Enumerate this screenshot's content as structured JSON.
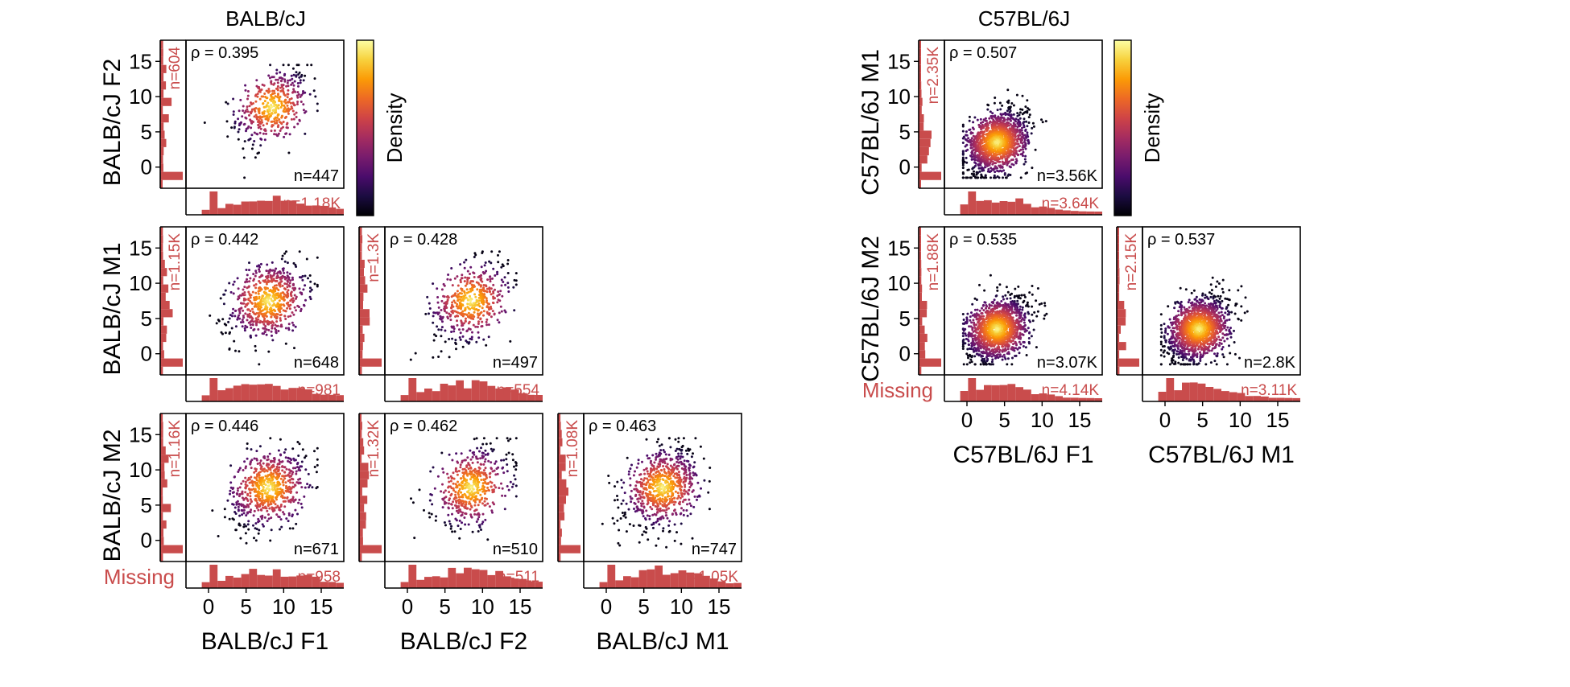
{
  "colors": {
    "hist": "#c94c4c",
    "missing_text": "#c94c4c",
    "axis": "#000000",
    "colormap": [
      "#000004",
      "#1b0c41",
      "#4a0c6b",
      "#781c6d",
      "#a52c60",
      "#cf4446",
      "#ed6925",
      "#fb9b06",
      "#f7d13d",
      "#fcffa4"
    ]
  },
  "colorbar_label": "Density",
  "missing_label": "Missing",
  "chart_data": [
    {
      "type": "scatter",
      "group": "BALB/cJ",
      "title": "BALB/cJ",
      "xlim": [
        -3,
        18
      ],
      "ylim": [
        -3,
        18
      ],
      "ticks": [
        0,
        5,
        10,
        15
      ],
      "panels": [
        {
          "row": 0,
          "col": 0,
          "xlabel": "",
          "ylabel": "BALB/cJ F2",
          "rho_label": "ρ = 0.395",
          "n_label": "n=447",
          "top_hist_label": "n=1.18K",
          "left_hist_label": "n=604",
          "center": [
            8.5,
            8.5
          ],
          "spread": 2.4,
          "points": 447
        },
        {
          "row": 1,
          "col": 0,
          "xlabel": "",
          "ylabel": "BALB/cJ M1",
          "rho_label": "ρ = 0.442",
          "n_label": "n=648",
          "top_hist_label": "n=981",
          "left_hist_label": "n=1.15K",
          "center": [
            8.0,
            7.5
          ],
          "spread": 2.5,
          "points": 648
        },
        {
          "row": 1,
          "col": 1,
          "xlabel": "",
          "ylabel": "",
          "rho_label": "ρ = 0.428",
          "n_label": "n=497",
          "top_hist_label": "n=554",
          "left_hist_label": "n=1.3K",
          "center": [
            8.5,
            7.5
          ],
          "spread": 2.5,
          "points": 497
        },
        {
          "row": 2,
          "col": 0,
          "xlabel": "BALB/cJ F1",
          "ylabel": "BALB/cJ M2",
          "rho_label": "ρ = 0.446",
          "n_label": "n=671",
          "top_hist_label": "n=958",
          "left_hist_label": "n=1.16K",
          "center": [
            8.0,
            7.5
          ],
          "spread": 2.5,
          "points": 671
        },
        {
          "row": 2,
          "col": 1,
          "xlabel": "BALB/cJ F2",
          "ylabel": "",
          "rho_label": "ρ = 0.462",
          "n_label": "n=510",
          "top_hist_label": "n=511",
          "left_hist_label": "n=1.32K",
          "center": [
            8.5,
            7.5
          ],
          "spread": 2.5,
          "points": 510
        },
        {
          "row": 2,
          "col": 2,
          "xlabel": "BALB/cJ M1",
          "ylabel": "",
          "rho_label": "ρ = 0.463",
          "n_label": "n=747",
          "top_hist_label": "n=1.05K",
          "left_hist_label": "n=1.08K",
          "center": [
            7.5,
            7.5
          ],
          "spread": 2.4,
          "points": 747
        }
      ]
    },
    {
      "type": "scatter",
      "group": "C57BL/6J",
      "title": "C57BL/6J",
      "xlim": [
        -3,
        18
      ],
      "ylim": [
        -3,
        18
      ],
      "ticks": [
        0,
        5,
        10,
        15
      ],
      "panels": [
        {
          "row": 0,
          "col": 0,
          "xlabel": "",
          "ylabel": "C57BL/6J M1",
          "rho_label": "ρ = 0.507",
          "n_label": "n=3.56K",
          "top_hist_label": "n=3.64K",
          "left_hist_label": "n=2.35K",
          "center": [
            4.0,
            3.5
          ],
          "spread": 2.0,
          "points": 3560
        },
        {
          "row": 1,
          "col": 0,
          "xlabel": "C57BL/6J F1",
          "ylabel": "C57BL/6J M2",
          "rho_label": "ρ = 0.535",
          "n_label": "n=3.07K",
          "top_hist_label": "n=4.14K",
          "left_hist_label": "n=1.88K",
          "center": [
            4.0,
            3.5
          ],
          "spread": 2.0,
          "points": 3070
        },
        {
          "row": 1,
          "col": 1,
          "xlabel": "C57BL/6J M1",
          "ylabel": "",
          "rho_label": "ρ = 0.537",
          "n_label": "n=2.8K",
          "top_hist_label": "n=3.11K",
          "left_hist_label": "n=2.15K",
          "center": [
            4.5,
            3.5
          ],
          "spread": 2.0,
          "points": 2800
        }
      ]
    }
  ]
}
